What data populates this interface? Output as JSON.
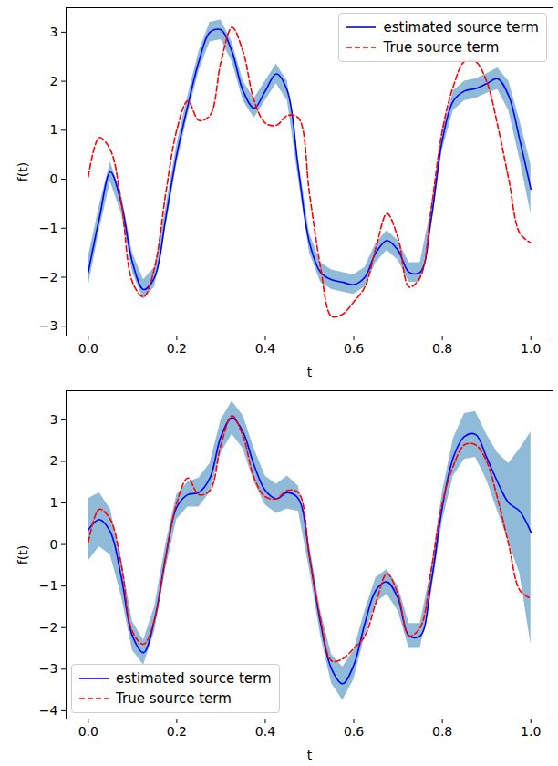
{
  "chart_data": [
    {
      "type": "line",
      "xlabel": "t",
      "ylabel": "f(t)",
      "xlim": [
        -0.05,
        1.05
      ],
      "ylim": [
        -3.2,
        3.5
      ],
      "xticks": [
        {
          "value": 0,
          "label": "0.0"
        },
        {
          "value": 0.2,
          "label": "0.2"
        },
        {
          "value": 0.4,
          "label": "0.4"
        },
        {
          "value": 0.6,
          "label": "0.6"
        },
        {
          "value": 0.8,
          "label": "0.8"
        },
        {
          "value": 1,
          "label": "1.0"
        }
      ],
      "yticks": [
        -3,
        -2,
        -1,
        0,
        1,
        2,
        3
      ],
      "legend": "upper right",
      "x": [
        0,
        0.025,
        0.05,
        0.075,
        0.1,
        0.125,
        0.15,
        0.175,
        0.2,
        0.225,
        0.25,
        0.275,
        0.3,
        0.325,
        0.35,
        0.375,
        0.4,
        0.425,
        0.45,
        0.475,
        0.5,
        0.525,
        0.55,
        0.575,
        0.6,
        0.625,
        0.65,
        0.675,
        0.7,
        0.725,
        0.75,
        0.775,
        0.8,
        0.825,
        0.85,
        0.875,
        0.9,
        0.925,
        0.95,
        0.975,
        1.0
      ],
      "series": [
        {
          "name": "estimated source term",
          "color": "#0000ff",
          "line_style": "solid",
          "values": [
            -1.9,
            -0.8,
            0.15,
            -0.5,
            -1.7,
            -2.25,
            -2.0,
            -0.8,
            0.5,
            1.5,
            2.4,
            3.0,
            3.05,
            2.6,
            1.8,
            1.45,
            1.8,
            2.15,
            1.8,
            0.2,
            -1.3,
            -1.9,
            -2.05,
            -2.1,
            -2.15,
            -2.0,
            -1.5,
            -1.25,
            -1.45,
            -1.9,
            -1.9,
            -0.8,
            0.8,
            1.6,
            1.8,
            1.85,
            1.95,
            2.05,
            1.7,
            0.8,
            -0.2
          ],
          "lower": [
            -2.2,
            -1.05,
            -0.05,
            -0.7,
            -1.9,
            -2.45,
            -2.2,
            -1.0,
            0.3,
            1.3,
            2.2,
            2.8,
            2.85,
            2.4,
            1.6,
            1.25,
            1.6,
            1.95,
            1.6,
            0.0,
            -1.5,
            -2.1,
            -2.25,
            -2.3,
            -2.35,
            -2.2,
            -1.7,
            -1.45,
            -1.65,
            -2.1,
            -2.1,
            -1.0,
            0.6,
            1.4,
            1.6,
            1.65,
            1.75,
            1.83,
            1.4,
            0.4,
            -0.7
          ],
          "upper": [
            -1.6,
            -0.55,
            0.35,
            -0.3,
            -1.5,
            -2.05,
            -1.8,
            -0.6,
            0.7,
            1.7,
            2.6,
            3.2,
            3.25,
            2.8,
            2.0,
            1.65,
            2.0,
            2.35,
            2.0,
            0.4,
            -1.1,
            -1.7,
            -1.85,
            -1.9,
            -1.95,
            -1.8,
            -1.3,
            -1.05,
            -1.25,
            -1.7,
            -1.7,
            -0.6,
            1.0,
            1.8,
            2.0,
            2.05,
            2.15,
            2.27,
            2.0,
            1.2,
            0.3
          ]
        },
        {
          "name": "True source term",
          "color": "#ff0000",
          "line_style": "dashed",
          "values": [
            0.05,
            0.85,
            0.6,
            -0.5,
            -2.1,
            -2.4,
            -1.8,
            -0.3,
            1.0,
            1.6,
            1.2,
            1.3,
            2.4,
            3.1,
            2.6,
            1.6,
            1.15,
            1.1,
            1.3,
            1.25,
            -0.3,
            -1.8,
            -2.8,
            -2.75,
            -2.5,
            -2.2,
            -1.4,
            -0.7,
            -1.2,
            -2.2,
            -2.0,
            -0.6,
            1.0,
            1.9,
            2.4,
            2.4,
            2.0,
            1.1,
            0.0,
            -1.1,
            -1.3
          ]
        }
      ]
    },
    {
      "type": "line",
      "xlabel": "t",
      "ylabel": "f(t)",
      "xlim": [
        -0.05,
        1.05
      ],
      "ylim": [
        -4.2,
        3.7
      ],
      "xticks": [
        {
          "value": 0,
          "label": "0.0"
        },
        {
          "value": 0.2,
          "label": "0.2"
        },
        {
          "value": 0.4,
          "label": "0.4"
        },
        {
          "value": 0.6,
          "label": "0.6"
        },
        {
          "value": 0.8,
          "label": "0.8"
        },
        {
          "value": 1,
          "label": "1.0"
        }
      ],
      "yticks": [
        -4,
        -3,
        -2,
        -1,
        0,
        1,
        2,
        3
      ],
      "legend": "lower left",
      "x": [
        0,
        0.025,
        0.05,
        0.075,
        0.1,
        0.125,
        0.15,
        0.175,
        0.2,
        0.225,
        0.25,
        0.275,
        0.3,
        0.325,
        0.35,
        0.375,
        0.4,
        0.425,
        0.45,
        0.475,
        0.5,
        0.525,
        0.55,
        0.575,
        0.6,
        0.625,
        0.65,
        0.675,
        0.7,
        0.725,
        0.75,
        0.775,
        0.8,
        0.825,
        0.85,
        0.875,
        0.9,
        0.925,
        0.95,
        0.975,
        1.0
      ],
      "series": [
        {
          "name": "estimated source term",
          "color": "#0000ff",
          "line_style": "solid",
          "values": [
            0.35,
            0.6,
            0.3,
            -0.8,
            -2.2,
            -2.6,
            -1.8,
            -0.3,
            0.9,
            1.2,
            1.25,
            1.6,
            2.6,
            3.05,
            2.7,
            1.9,
            1.3,
            1.1,
            1.25,
            1.1,
            -0.3,
            -1.9,
            -3.0,
            -3.35,
            -2.9,
            -1.9,
            -1.1,
            -0.9,
            -1.3,
            -2.2,
            -2.2,
            -0.9,
            0.9,
            2.1,
            2.6,
            2.65,
            2.1,
            1.5,
            1.0,
            0.8,
            0.3
          ],
          "lower": [
            -0.4,
            -0.05,
            -0.25,
            -1.25,
            -2.55,
            -2.9,
            -2.1,
            -0.6,
            0.6,
            0.9,
            0.9,
            1.25,
            2.2,
            2.65,
            2.3,
            1.5,
            0.95,
            0.75,
            0.85,
            0.8,
            -0.6,
            -2.2,
            -3.35,
            -3.75,
            -3.25,
            -2.2,
            -1.4,
            -1.2,
            -1.6,
            -2.5,
            -2.5,
            -1.2,
            0.55,
            1.65,
            2.05,
            2.1,
            1.55,
            0.8,
            0.05,
            -0.7,
            -2.4
          ],
          "upper": [
            1.1,
            1.25,
            0.85,
            -0.35,
            -1.85,
            -2.3,
            -1.5,
            0.0,
            1.2,
            1.5,
            1.6,
            1.95,
            3.0,
            3.45,
            3.1,
            2.3,
            1.65,
            1.45,
            1.65,
            1.4,
            0.0,
            -1.6,
            -2.65,
            -2.95,
            -2.55,
            -1.6,
            -0.8,
            -0.6,
            -1.0,
            -1.9,
            -1.9,
            -0.6,
            1.25,
            2.55,
            3.15,
            3.2,
            2.65,
            2.2,
            1.95,
            2.3,
            2.7
          ]
        },
        {
          "name": "True source term",
          "color": "#ff0000",
          "line_style": "dashed",
          "values": [
            0.05,
            0.85,
            0.6,
            -0.5,
            -2.1,
            -2.4,
            -1.8,
            -0.3,
            1.0,
            1.6,
            1.2,
            1.3,
            2.4,
            3.1,
            2.6,
            1.6,
            1.15,
            1.1,
            1.3,
            1.25,
            -0.3,
            -1.8,
            -2.8,
            -2.75,
            -2.5,
            -2.2,
            -1.4,
            -0.7,
            -1.2,
            -2.2,
            -2.0,
            -0.6,
            1.0,
            1.9,
            2.4,
            2.4,
            2.0,
            1.1,
            0.0,
            -1.1,
            -1.3
          ]
        }
      ]
    }
  ]
}
